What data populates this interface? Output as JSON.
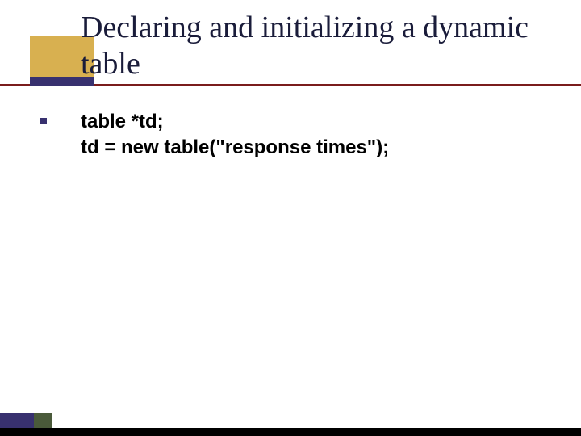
{
  "slide": {
    "title": "Declaring and initializing a dynamic table",
    "code_lines": [
      "table *td;",
      "td = new table(\"response times\");"
    ],
    "styling": {
      "title_color": "#1a1c3a",
      "title_fontsize": 38,
      "title_font": "Times New Roman",
      "code_fontsize": 24,
      "code_color": "#000000",
      "code_weight": "bold",
      "underline_color": "#7a1c1c",
      "accent_box_color": "#d8b050",
      "purple_bar_color": "#38316f",
      "bullet_color": "#38316f",
      "bottom_bar_color": "#000000",
      "bottom_purple_color": "#38316f",
      "bottom_green_color": "#4a5a3a",
      "background_color": "#ffffff"
    }
  }
}
